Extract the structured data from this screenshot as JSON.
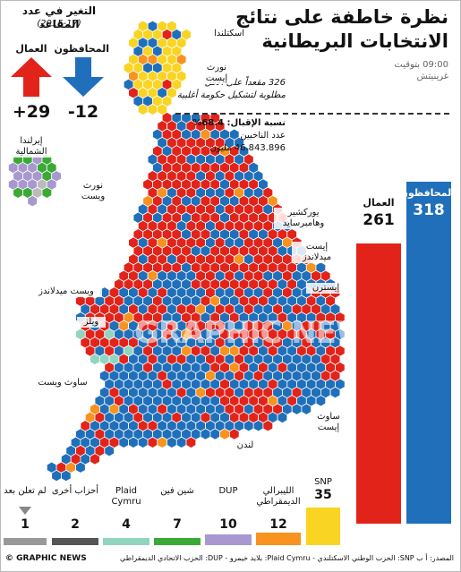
{
  "header": {
    "title_line1": "نظرة خاطفة على نتائج",
    "title_line2": "الانتخابات البريطانية",
    "time_line1": "09:00 بتوقيت",
    "time_line2": "غرينيتش",
    "seats_line1": "326 مقعداً على الأقل",
    "seats_line2": "مطلوبة لتشكيل حكومة أغلبية",
    "turnout_label": "نسبة الإقبال: 68.4%",
    "voters_label": "عدد الناخبين",
    "voters_value": "46.843.896 مليون"
  },
  "change": {
    "title": "التغير في عدد المقاعد",
    "subtitle": "(2015-17)",
    "conservative_label": "المحافظون",
    "labour_label": "العمال",
    "conservative_value": "-12",
    "labour_value": "+29",
    "conservative_color": "#1f6fba",
    "labour_color": "#e2231a"
  },
  "regions": {
    "scotland": "اسكتلندا",
    "north_east_1": "نورث",
    "north_east_2": "إيست",
    "northern_ireland_1": "إيرلندا",
    "northern_ireland_2": "الشمالية",
    "north_west_1": "نورث",
    "north_west_2": "ويست",
    "yorkshire_1": "يوركشير",
    "yorkshire_2": "وهامبرسايد",
    "east_midlands_1": "إيست",
    "east_midlands_2": "ميدلاندز",
    "west_midlands": "ويست ميدلاندز",
    "eastern": "إيسترن",
    "wales": "ويلز",
    "south_west": "ساوث ويست",
    "south_east_1": "ساوث",
    "south_east_2": "إيست",
    "london": "لندن"
  },
  "chart_data": {
    "type": "bar",
    "title": "نظرة خاطفة على نتائج الانتخابات البريطانية",
    "unit": "seats",
    "series": [
      {
        "name": "المحافظون",
        "value": 318,
        "color": "#1f6fba"
      },
      {
        "name": "العمال",
        "value": 261,
        "color": "#e2231a"
      },
      {
        "name": "SNP",
        "value": 35,
        "color": "#f9d423"
      },
      {
        "name": "الليبرالي الديمقراطي",
        "value": 12,
        "color": "#f7931e"
      },
      {
        "name": "DUP",
        "value": 10,
        "color": "#a898cf"
      },
      {
        "name": "شين فين",
        "value": 7,
        "color": "#3aaa35"
      },
      {
        "name": "Plaid Cymru",
        "value": 4,
        "color": "#8fd5c0"
      },
      {
        "name": "أحزاب أخرى",
        "value": 2,
        "color": "#555555"
      },
      {
        "name": "لم تعلن بعد",
        "value": 1,
        "color": "#999999"
      }
    ],
    "seat_change": [
      {
        "party": "المحافظون",
        "value": -12
      },
      {
        "party": "العمال",
        "value": 29
      }
    ]
  },
  "footer": {
    "credit": "© GRAPHIC NEWS",
    "source": "المصدر: أ ب  SNP: الحزب الوطني الاسكتلندي - Plaid Cymru: بلايد خيمرو - DUP: الحزب الاتحادي الديمقراطي"
  },
  "watermark": "GRAPHIC NEWS"
}
